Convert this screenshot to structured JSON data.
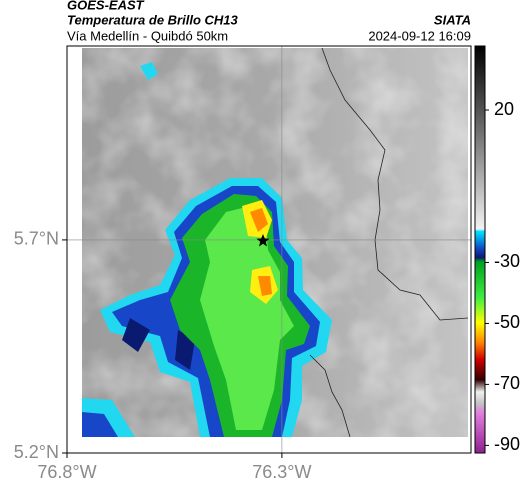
{
  "header": {
    "title": "GOES-EAST",
    "subtitle": "Temperatura de Brillo CH13",
    "source": "SIATA",
    "route": "Vía Medellín - Quibdó 50km",
    "timestamp": "2024-09-12 16:09"
  },
  "map": {
    "xlim": [
      -76.8,
      -75.86
    ],
    "ylim": [
      5.2,
      6.155
    ],
    "xticks": [
      {
        "value": -76.8,
        "label": "76.8°W"
      },
      {
        "value": -76.3,
        "label": "76.3°W"
      }
    ],
    "yticks": [
      {
        "value": 5.2,
        "label": "5.2°N"
      },
      {
        "value": 5.7,
        "label": "5.7°N"
      }
    ]
  },
  "colorbar": {
    "lim": [
      -92.5,
      41
    ],
    "ticks": [
      20,
      -30,
      -50,
      -70,
      -90
    ]
  }
}
